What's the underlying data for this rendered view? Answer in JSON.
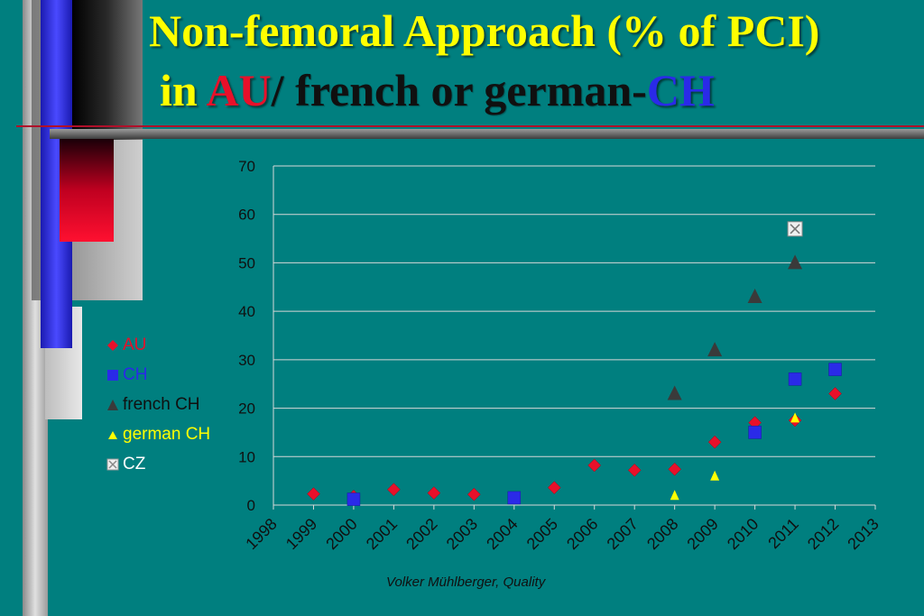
{
  "slide": {
    "title_line1": "Non-femoral Approach (% of  PCI)",
    "title_in": "in ",
    "title_au": "AU",
    "title_slash": "/ ",
    "title_fg": "french or german-",
    "title_ch": "CH",
    "footer": "Volker Mühlberger, Quality",
    "colors": {
      "background": "#007f7f",
      "title": "#ffff00",
      "au": "#e8102a",
      "ch": "#2a2ae8",
      "french_ch": "#3a3a3a",
      "german_ch": "#ffff00",
      "cz": "#f0f0f0"
    }
  },
  "chart_data": {
    "type": "scatter",
    "title": "",
    "xlabel": "",
    "ylabel": "",
    "xlim": [
      1998,
      2013
    ],
    "ylim": [
      0,
      70
    ],
    "x_ticks": [
      "1998",
      "1999",
      "2000",
      "2001",
      "2002",
      "2003",
      "2004",
      "2005",
      "2006",
      "2007",
      "2008",
      "2009",
      "2010",
      "2011",
      "2012",
      "2013"
    ],
    "y_ticks": [
      "0",
      "10",
      "20",
      "30",
      "40",
      "50",
      "60",
      "70"
    ],
    "grid": true,
    "legend_position": "left",
    "series": [
      {
        "name": "AU",
        "marker": "diamond",
        "color": "#e8102a",
        "points": [
          [
            1999,
            2.3
          ],
          [
            2000,
            1.8
          ],
          [
            2001,
            3.2
          ],
          [
            2002,
            2.5
          ],
          [
            2003,
            2.2
          ],
          [
            2004,
            1.5
          ],
          [
            2005,
            3.6
          ],
          [
            2006,
            8.2
          ],
          [
            2007,
            7.2
          ],
          [
            2008,
            7.4
          ],
          [
            2009,
            13
          ],
          [
            2010,
            17
          ],
          [
            2011,
            17.5
          ],
          [
            2012,
            23
          ]
        ]
      },
      {
        "name": "CH",
        "marker": "square",
        "color": "#2a2ae8",
        "points": [
          [
            2000,
            1.2
          ],
          [
            2004,
            1.5
          ],
          [
            2010,
            15
          ],
          [
            2011,
            26
          ],
          [
            2012,
            28
          ]
        ]
      },
      {
        "name": "french CH",
        "marker": "triangle",
        "color": "#3a3a3a",
        "points": [
          [
            2008,
            23
          ],
          [
            2009,
            32
          ],
          [
            2010,
            43
          ],
          [
            2011,
            50
          ]
        ]
      },
      {
        "name": "german CH",
        "marker": "triangle-small",
        "color": "#ffff00",
        "points": [
          [
            2008,
            2
          ],
          [
            2009,
            6
          ],
          [
            2011,
            18
          ]
        ]
      },
      {
        "name": "CZ",
        "marker": "crossed-square",
        "color": "#f0f0f0",
        "points": [
          [
            2011,
            57
          ]
        ]
      }
    ]
  }
}
